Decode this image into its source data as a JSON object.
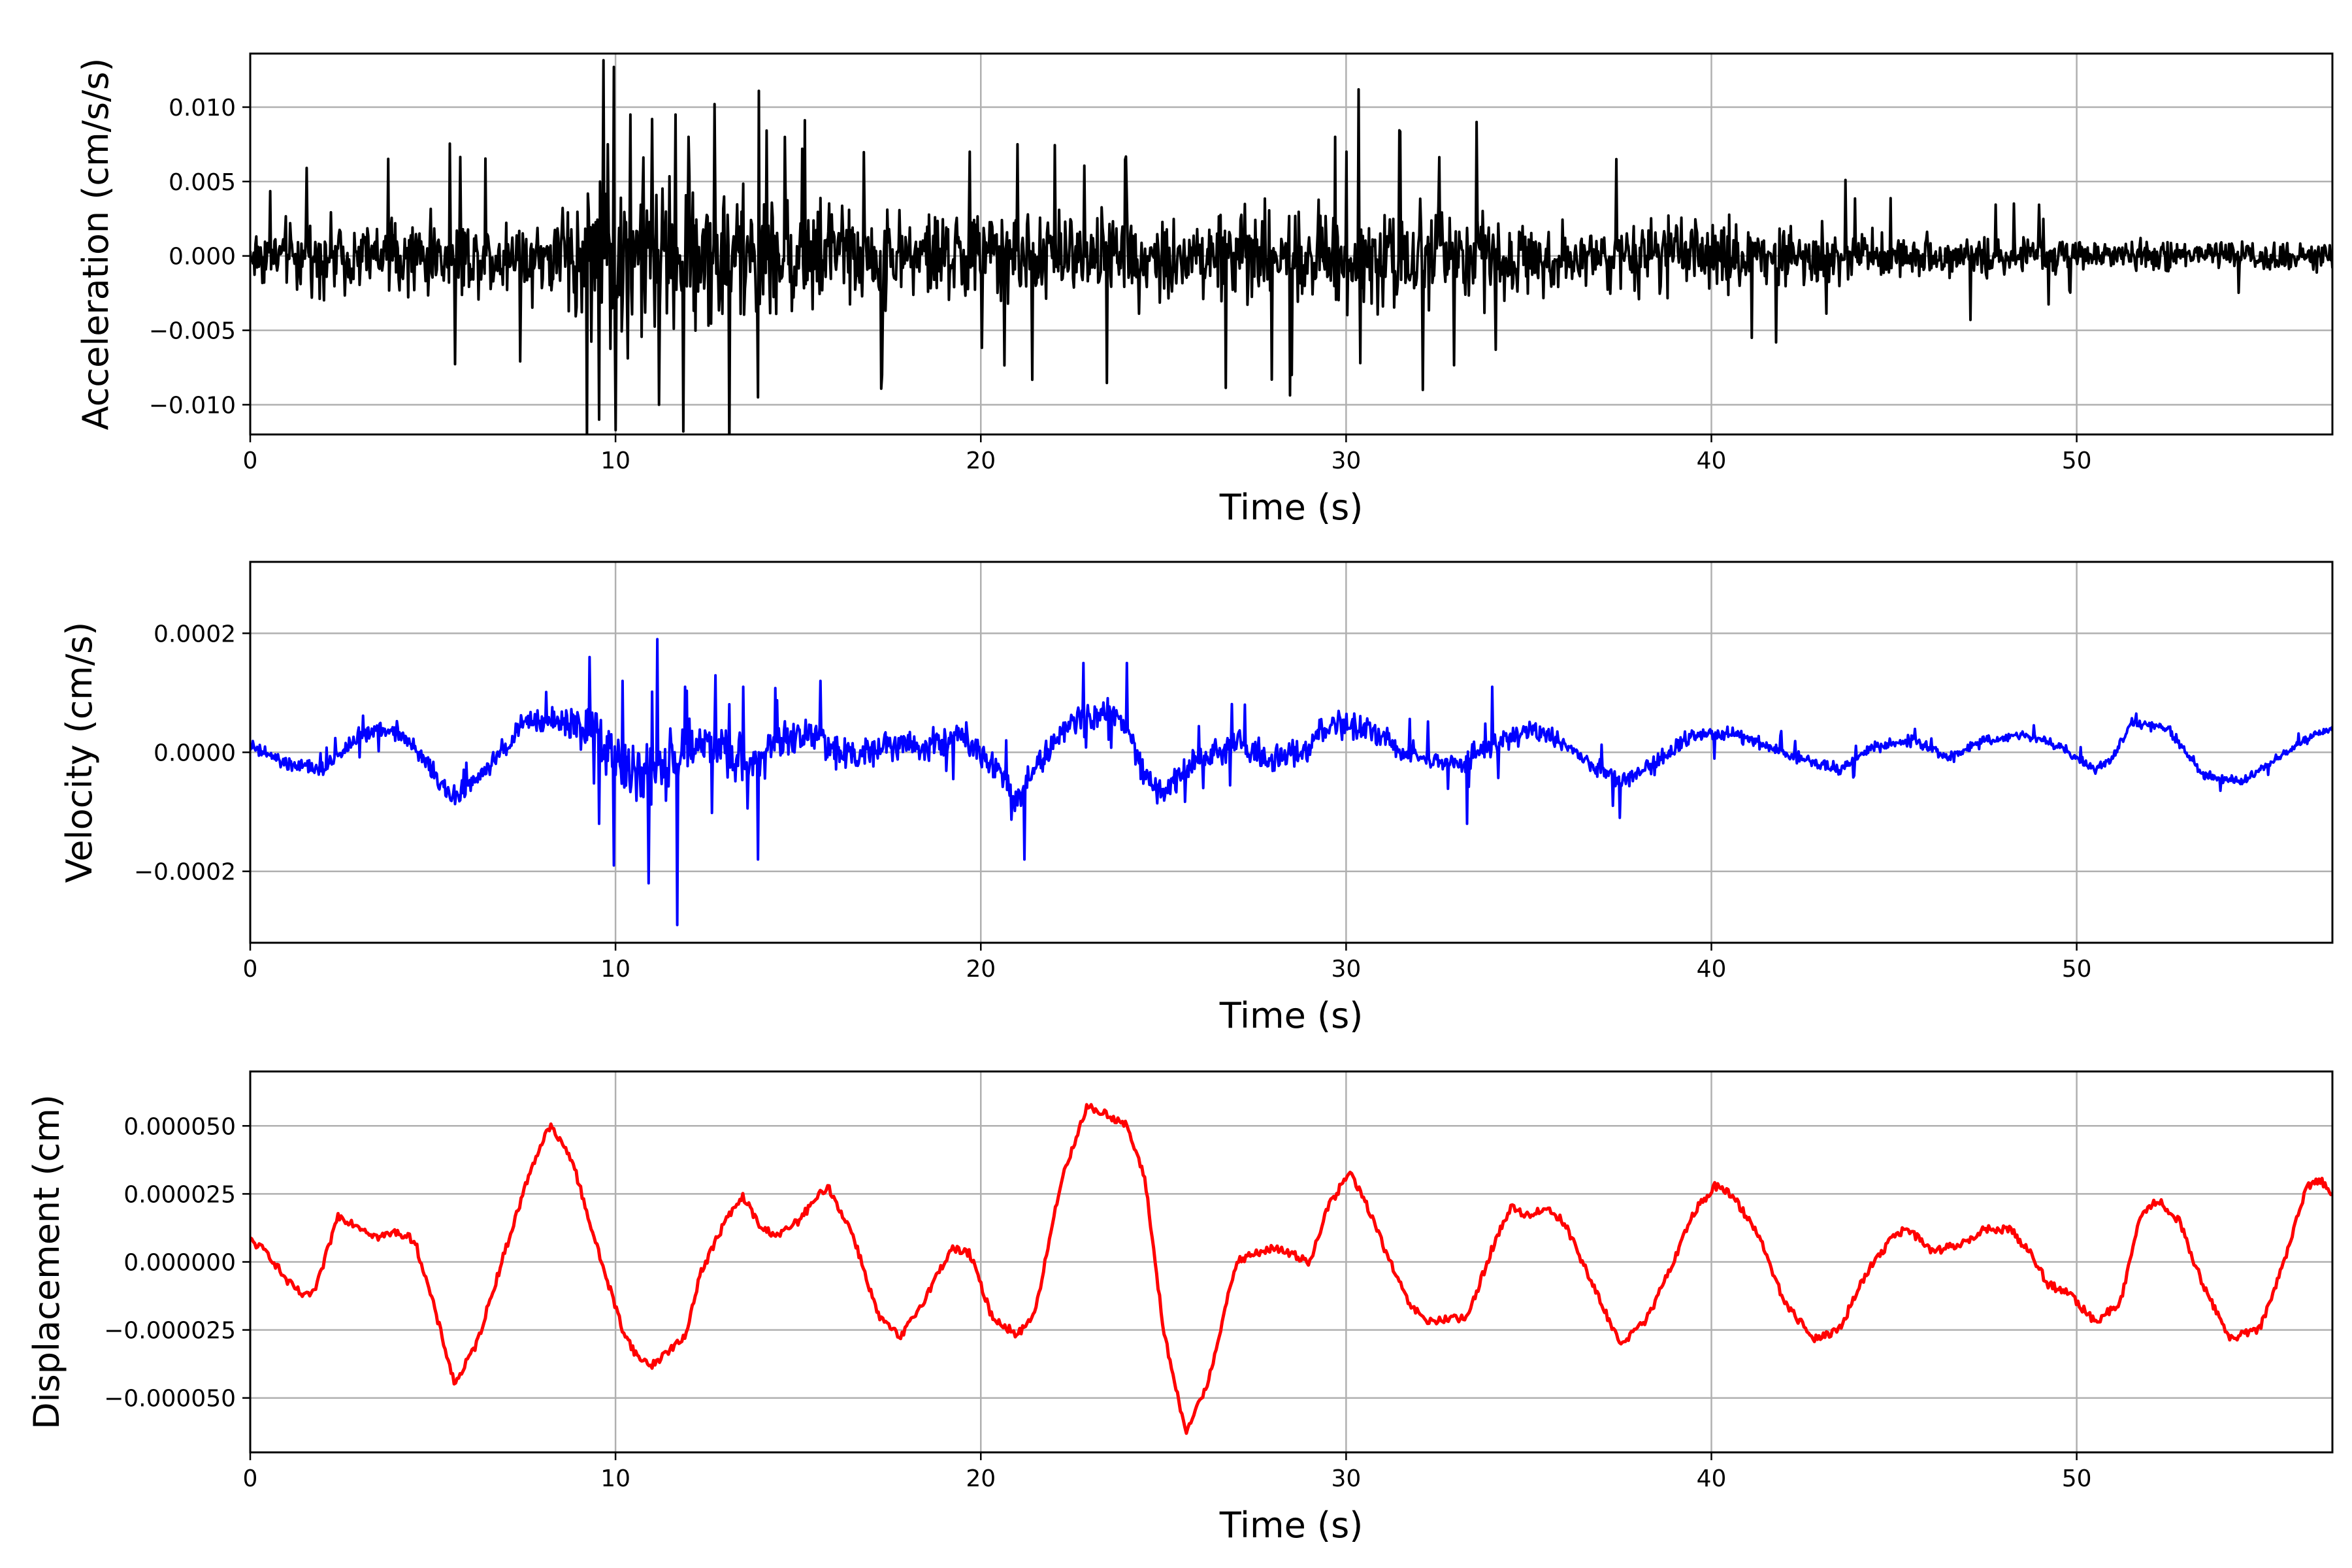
{
  "chart_data": [
    {
      "type": "line",
      "xlabel": "Time (s)",
      "ylabel": "Acceleration (cm/s/s)",
      "xlim": [
        0,
        57
      ],
      "ylim": [
        -0.012,
        0.0136
      ],
      "xticks": [
        0,
        10,
        20,
        30,
        40,
        50
      ],
      "xtick_labels": [
        "0",
        "10",
        "20",
        "30",
        "40",
        "50"
      ],
      "yticks": [
        -0.01,
        -0.005,
        0.0,
        0.005,
        0.01
      ],
      "ytick_labels": [
        "−0.010",
        "−0.005",
        "0.000",
        "0.005",
        "0.010"
      ],
      "grid": true,
      "series": [
        {
          "color": "#000000",
          "style": "noisy",
          "envelope": [
            [
              0,
              0.0035
            ],
            [
              7.5,
              0.0045
            ],
            [
              8.5,
              0.006
            ],
            [
              9.3,
              0.009
            ],
            [
              10,
              0.0115
            ],
            [
              11,
              0.0095
            ],
            [
              12,
              0.0085
            ],
            [
              13,
              0.008
            ],
            [
              14,
              0.0065
            ],
            [
              16,
              0.006
            ],
            [
              20,
              0.005
            ],
            [
              25,
              0.0048
            ],
            [
              29,
              0.0055
            ],
            [
              30,
              0.0065
            ],
            [
              31,
              0.006
            ],
            [
              34,
              0.005
            ],
            [
              36,
              0.004
            ],
            [
              40,
              0.0038
            ],
            [
              41,
              0.0042
            ],
            [
              43,
              0.003
            ],
            [
              46,
              0.0023
            ],
            [
              50,
              0.0018
            ],
            [
              57,
              0.0016
            ]
          ],
          "spikes": [
            [
              9.55,
              -0.011
            ],
            [
              9.8,
              0.0075
            ],
            [
              9.95,
              0.0127
            ],
            [
              10.0,
              -0.0117
            ],
            [
              10.4,
              0.0095
            ],
            [
              11.0,
              0.0092
            ],
            [
              11.2,
              -0.01
            ],
            [
              11.65,
              0.0095
            ],
            [
              11.85,
              -0.0118
            ],
            [
              12.0,
              0.008
            ],
            [
              12.7,
              0.0102
            ],
            [
              13.9,
              -0.0095
            ],
            [
              15.1,
              0.0072
            ],
            [
              17.3,
              -0.008
            ],
            [
              19.7,
              0.007
            ],
            [
              21.0,
              0.0075
            ],
            [
              29.7,
              0.008
            ],
            [
              28.5,
              -0.008
            ],
            [
              30.0,
              0.007
            ],
            [
              30.4,
              -0.0072
            ],
            [
              34.1,
              -0.0063
            ],
            [
              41.1,
              -0.0055
            ],
            [
              47.1,
              -0.0043
            ]
          ],
          "note_sampling": "dense"
        }
      ]
    },
    {
      "type": "line",
      "xlabel": "Time (s)",
      "ylabel": "Velocity (cm/s)",
      "xlim": [
        0,
        57
      ],
      "ylim": [
        -0.00032,
        0.00032
      ],
      "xticks": [
        0,
        10,
        20,
        30,
        40,
        50
      ],
      "xtick_labels": [
        "0",
        "10",
        "20",
        "30",
        "40",
        "50"
      ],
      "yticks": [
        -0.0002,
        0.0,
        0.0002
      ],
      "ytick_labels": [
        "−0.0002",
        "0.0000",
        "0.0002"
      ],
      "grid": true,
      "series": [
        {
          "color": "#0000ff",
          "style": "noisy",
          "baseline": [
            [
              0,
              1e-05
            ],
            [
              1,
              -2e-05
            ],
            [
              2,
              -3e-05
            ],
            [
              3,
              3e-05
            ],
            [
              4,
              4e-05
            ],
            [
              5,
              -3e-05
            ],
            [
              5.5,
              -8e-05
            ],
            [
              6.5,
              -3e-05
            ],
            [
              7.5,
              5e-05
            ],
            [
              8.5,
              5e-05
            ],
            [
              9.5,
              4e-05
            ],
            [
              10.5,
              -5e-05
            ],
            [
              11.5,
              -2e-05
            ],
            [
              12.5,
              2e-05
            ],
            [
              13.5,
              -2e-05
            ],
            [
              14.5,
              2e-05
            ],
            [
              15.5,
              3e-05
            ],
            [
              16.5,
              -1e-05
            ],
            [
              17.5,
              2e-05
            ],
            [
              18.5,
              1e-05
            ],
            [
              19.5,
              3e-05
            ],
            [
              20.5,
              -3e-05
            ],
            [
              21,
              -8e-05
            ],
            [
              21.5,
              -2e-05
            ],
            [
              22.5,
              5e-05
            ],
            [
              23.5,
              7e-05
            ],
            [
              24,
              4e-05
            ],
            [
              24.5,
              -4e-05
            ],
            [
              25,
              -7e-05
            ],
            [
              26,
              -1e-05
            ],
            [
              27,
              2e-05
            ],
            [
              28,
              -2e-05
            ],
            [
              29,
              1e-05
            ],
            [
              29.5,
              4e-05
            ],
            [
              30,
              5e-05
            ],
            [
              31,
              2e-05
            ],
            [
              32,
              -1e-05
            ],
            [
              33,
              -2e-05
            ],
            [
              34,
              1e-05
            ],
            [
              35,
              4e-05
            ],
            [
              36,
              1e-05
            ],
            [
              37,
              -3e-05
            ],
            [
              37.5,
              -5e-05
            ],
            [
              38.5,
              -2e-05
            ],
            [
              39.5,
              3e-05
            ],
            [
              40.5,
              3e-05
            ],
            [
              41.5,
              1e-05
            ],
            [
              42.5,
              -1e-05
            ],
            [
              43.5,
              -3e-05
            ],
            [
              44.5,
              1e-05
            ],
            [
              45.5,
              2e-05
            ],
            [
              46.5,
              -1e-05
            ],
            [
              47.5,
              2e-05
            ],
            [
              48.5,
              3e-05
            ],
            [
              49.5,
              1e-05
            ],
            [
              50.5,
              -3e-05
            ],
            [
              51,
              -1e-05
            ],
            [
              51.5,
              5e-05
            ],
            [
              52.5,
              4e-05
            ],
            [
              53.5,
              -4e-05
            ],
            [
              54.5,
              -5e-05
            ],
            [
              55.5,
              -1e-05
            ],
            [
              56.5,
              3e-05
            ],
            [
              57,
              4e-05
            ]
          ],
          "envelope": [
            [
              0,
              2e-05
            ],
            [
              7.5,
              3e-05
            ],
            [
              9,
              6e-05
            ],
            [
              10,
              0.0001
            ],
            [
              12,
              8e-05
            ],
            [
              14,
              6e-05
            ],
            [
              17,
              5e-05
            ],
            [
              20,
              4e-05
            ],
            [
              25,
              4e-05
            ],
            [
              30,
              4e-05
            ],
            [
              36,
              3e-05
            ],
            [
              45,
              1.5e-05
            ],
            [
              57,
              1.2e-05
            ]
          ],
          "spikes": [
            [
              9.3,
              0.00016
            ],
            [
              9.55,
              -0.00012
            ],
            [
              9.95,
              -0.00019
            ],
            [
              10.2,
              0.00012
            ],
            [
              10.9,
              -0.00022
            ],
            [
              11.15,
              0.00019
            ],
            [
              11.7,
              -0.00029
            ],
            [
              11.9,
              0.00011
            ],
            [
              13.9,
              -0.00018
            ],
            [
              13.5,
              0.00011
            ],
            [
              15.6,
              0.00012
            ],
            [
              21.2,
              -0.00018
            ],
            [
              22.8,
              0.00015
            ],
            [
              24.0,
              0.00015
            ],
            [
              33.3,
              -0.00012
            ],
            [
              34.0,
              0.00011
            ],
            [
              37.5,
              -0.00011
            ]
          ],
          "note_sampling": "dense"
        }
      ]
    },
    {
      "type": "line",
      "xlabel": "Time (s)",
      "ylabel": "Displacement (cm)",
      "xlim": [
        0,
        57
      ],
      "ylim": [
        -7e-05,
        7e-05
      ],
      "xticks": [
        0,
        10,
        20,
        30,
        40,
        50
      ],
      "xtick_labels": [
        "0",
        "10",
        "20",
        "30",
        "40",
        "50"
      ],
      "yticks": [
        -5e-05,
        -2.5e-05,
        0.0,
        2.5e-05,
        5e-05
      ],
      "ytick_labels": [
        "−0.000050",
        "−0.000025",
        "0.000000",
        "0.000025",
        "0.000050"
      ],
      "grid": true,
      "series": [
        {
          "color": "#ff0000",
          "style": "smooth",
          "points": [
            [
              0,
              8e-06
            ],
            [
              0.5,
              3e-06
            ],
            [
              1,
              -7e-06
            ],
            [
              1.5,
              -1.3e-05
            ],
            [
              1.8,
              -1e-05
            ],
            [
              2.4,
              1.7e-05
            ],
            [
              3,
              1.3e-05
            ],
            [
              3.5,
              9e-06
            ],
            [
              4,
              1.1e-05
            ],
            [
              4.5,
              8e-06
            ],
            [
              5,
              -1.5e-05
            ],
            [
              5.6,
              -4.5e-05
            ],
            [
              6.2,
              -3e-05
            ],
            [
              7,
              5e-06
            ],
            [
              7.7,
              3.5e-05
            ],
            [
              8.2,
              5e-05
            ],
            [
              8.8,
              3.8e-05
            ],
            [
              9.5,
              5e-06
            ],
            [
              10.2,
              -2.5e-05
            ],
            [
              10.6,
              -3.5e-05
            ],
            [
              11,
              -3.8e-05
            ],
            [
              11.5,
              -3.2e-05
            ],
            [
              11.9,
              -2.8e-05
            ],
            [
              12.3,
              -5e-06
            ],
            [
              13,
              1.5e-05
            ],
            [
              13.5,
              2.4e-05
            ],
            [
              14,
              1.2e-05
            ],
            [
              14.5,
              1e-05
            ],
            [
              15,
              1.5e-05
            ],
            [
              15.8,
              2.8e-05
            ],
            [
              16.5,
              1e-05
            ],
            [
              17.2,
              -2e-05
            ],
            [
              17.8,
              -2.8e-05
            ],
            [
              18.4,
              -1.5e-05
            ],
            [
              19.2,
              5e-06
            ],
            [
              19.7,
              3e-06
            ],
            [
              20.3,
              -2e-05
            ],
            [
              21,
              -2.7e-05
            ],
            [
              21.5,
              -1.8e-05
            ],
            [
              22.2,
              3e-05
            ],
            [
              22.9,
              5.7e-05
            ],
            [
              23.5,
              5.4e-05
            ],
            [
              24,
              5e-05
            ],
            [
              24.5,
              3e-05
            ],
            [
              25,
              -2.5e-05
            ],
            [
              25.6,
              -6.3e-05
            ],
            [
              26.2,
              -4.5e-05
            ],
            [
              27,
              0.0
            ],
            [
              27.5,
              3e-06
            ],
            [
              28,
              5e-06
            ],
            [
              28.5,
              3e-06
            ],
            [
              29,
              0.0
            ],
            [
              29.5,
              2e-05
            ],
            [
              30.1,
              3.3e-05
            ],
            [
              30.6,
              2e-05
            ],
            [
              31.2,
              0.0
            ],
            [
              31.7,
              -1.5e-05
            ],
            [
              32.2,
              -2.2e-05
            ],
            [
              32.8,
              -2.1e-05
            ],
            [
              33.3,
              -2.1e-05
            ],
            [
              34,
              5e-06
            ],
            [
              34.5,
              2e-05
            ],
            [
              35,
              1.7e-05
            ],
            [
              35.5,
              2e-05
            ],
            [
              36,
              1.4e-05
            ],
            [
              36.8,
              -1e-05
            ],
            [
              37.5,
              -3e-05
            ],
            [
              38.2,
              -2.2e-05
            ],
            [
              38.8,
              -5e-06
            ],
            [
              39.5,
              1.8e-05
            ],
            [
              40.1,
              2.8e-05
            ],
            [
              40.6,
              2.4e-05
            ],
            [
              41.3,
              1e-05
            ],
            [
              42,
              -1.5e-05
            ],
            [
              42.8,
              -2.8e-05
            ],
            [
              43.5,
              -2.5e-05
            ],
            [
              44.2,
              -5e-06
            ],
            [
              45,
              1e-05
            ],
            [
              45.4,
              1.2e-05
            ],
            [
              46,
              4e-06
            ],
            [
              46.8,
              6e-06
            ],
            [
              47.5,
              1.2e-05
            ],
            [
              48.2,
              1.2e-05
            ],
            [
              48.8,
              2e-06
            ],
            [
              49.2,
              -8e-06
            ],
            [
              49.8,
              -1.2e-05
            ],
            [
              50.5,
              -2.2e-05
            ],
            [
              51.2,
              -1.5e-05
            ],
            [
              51.7,
              1.5e-05
            ],
            [
              52.2,
              2.3e-05
            ],
            [
              52.8,
              1.5e-05
            ],
            [
              53.5,
              -1e-05
            ],
            [
              54.2,
              -2.8e-05
            ],
            [
              55,
              -2.5e-05
            ],
            [
              55.8,
              5e-06
            ],
            [
              56.3,
              2.8e-05
            ],
            [
              56.7,
              3e-05
            ],
            [
              57,
              2.5e-05
            ]
          ],
          "jitter": 1.5e-06,
          "note_sampling": "dense"
        }
      ]
    }
  ]
}
